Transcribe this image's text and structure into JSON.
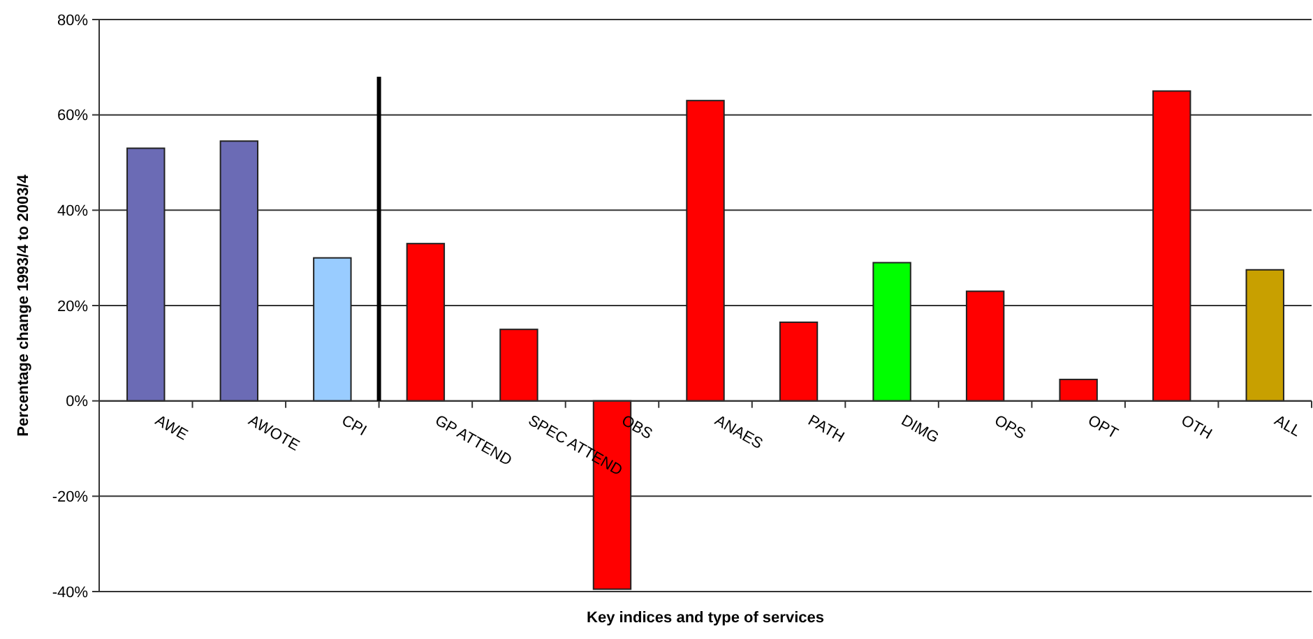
{
  "chart_data": {
    "type": "bar",
    "xlabel": "Key indices and type of services",
    "ylabel": "Percentage change 1993/4 to 2003/4",
    "categories": [
      "AWE",
      "AWOTE",
      "CPI",
      "GP ATTEND",
      "SPEC ATTEND",
      "OBS",
      "ANAES",
      "PATH",
      "DIMG",
      "OPS",
      "OPT",
      "OTH",
      "ALL"
    ],
    "values": [
      53,
      54.5,
      30,
      33,
      15,
      -39.5,
      63,
      16.5,
      29,
      23,
      4.5,
      65,
      27.5
    ],
    "colors": [
      "#6b6bb5",
      "#6b6bb5",
      "#99ccff",
      "#ff0000",
      "#ff0000",
      "#ff0000",
      "#ff0000",
      "#ff0000",
      "#00ff00",
      "#ff0000",
      "#ff0000",
      "#ff0000",
      "#c8a000"
    ],
    "ylim": [
      -40,
      80
    ],
    "yticks": [
      {
        "value": -40,
        "label": "-40%"
      },
      {
        "value": -20,
        "label": "-20%"
      },
      {
        "value": 0,
        "label": "0%"
      },
      {
        "value": 20,
        "label": "20%"
      },
      {
        "value": 40,
        "label": "40%"
      },
      {
        "value": 60,
        "label": "60%"
      },
      {
        "value": 80,
        "label": "80%"
      }
    ],
    "grid": "y"
  }
}
